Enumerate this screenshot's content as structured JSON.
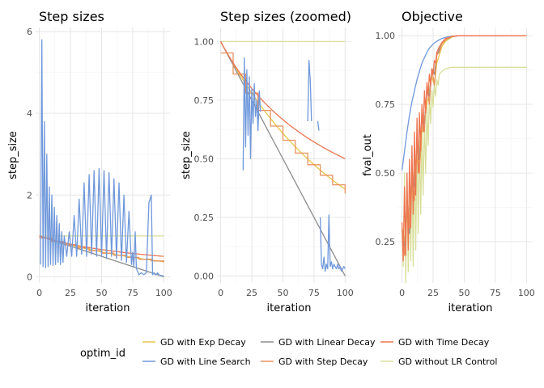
{
  "colors": {
    "GD with Exp Decay": "#e8c64a",
    "GD with Line Search": "#6f98db",
    "GD with Linear Decay": "#8c8c8c",
    "GD with Step Decay": "#e8925f",
    "GD with Time Decay": "#ee7650",
    "GD without LR Control": "#d9df9a"
  },
  "legend": {
    "title": "optim_id",
    "entries": [
      "GD with Exp Decay",
      "GD with Line Search",
      "GD with Linear Decay",
      "GD with Step Decay",
      "GD with Time Decay",
      "GD without LR Control"
    ]
  },
  "chart_data": [
    {
      "type": "line",
      "title": "Step sizes",
      "xlabel": "iteration",
      "ylabel": "step_size",
      "xlim": [
        -3,
        105
      ],
      "ylim": [
        -0.15,
        6.1
      ],
      "xticks": [
        "0",
        "25",
        "50",
        "75",
        "100"
      ],
      "yticks": [
        "0",
        "2",
        "4",
        "6"
      ],
      "grid": true,
      "series": [
        {
          "name": "GD without LR Control",
          "kind": "const",
          "value": 1.0
        },
        {
          "name": "GD with Exp Decay",
          "kind": "exp",
          "start": 1.0,
          "end": 0.37
        },
        {
          "name": "GD with Linear Decay",
          "kind": "linear",
          "start": 1.0,
          "end": 0.0
        },
        {
          "name": "GD with Step Decay",
          "kind": "step",
          "start": 1.0,
          "end": 0.37
        },
        {
          "name": "GD with Time Decay",
          "kind": "time",
          "start": 1.0,
          "end": 0.5
        },
        {
          "name": "GD with Line Search",
          "kind": "points",
          "x": [
            1,
            2,
            3,
            4,
            5,
            6,
            7,
            8,
            9,
            10,
            11,
            12,
            13,
            14,
            15,
            16,
            17,
            18,
            19,
            20,
            22,
            24,
            26,
            28,
            30,
            32,
            34,
            36,
            38,
            40,
            42,
            44,
            46,
            48,
            50,
            52,
            54,
            56,
            58,
            60,
            62,
            64,
            66,
            68,
            70,
            72,
            74,
            75,
            76,
            77,
            78,
            80,
            82,
            84,
            86,
            88,
            90,
            91,
            92,
            93,
            94,
            95,
            96,
            98,
            100
          ],
          "y": [
            0.3,
            5.8,
            0.25,
            3.8,
            0.22,
            3.0,
            0.25,
            2.2,
            0.3,
            2.0,
            0.28,
            1.7,
            0.3,
            1.5,
            0.35,
            1.3,
            0.3,
            1.1,
            0.35,
            1.0,
            0.5,
            1.1,
            0.5,
            1.5,
            0.5,
            1.9,
            0.55,
            2.3,
            0.5,
            2.5,
            0.55,
            2.6,
            0.5,
            2.65,
            0.5,
            2.6,
            0.45,
            2.55,
            0.5,
            2.4,
            0.45,
            2.3,
            0.4,
            2.0,
            0.35,
            1.6,
            0.3,
            0.6,
            0.25,
            1.1,
            0.2,
            0.05,
            0.1,
            0.05,
            0.1,
            1.8,
            2.0,
            0.05,
            0.1,
            0.05,
            0.05,
            0.1,
            0.05,
            0.03,
            0.02
          ]
        }
      ]
    },
    {
      "type": "line",
      "title": "Step sizes (zoomed)",
      "xlabel": "iteration",
      "ylabel": "step_size",
      "xlim": [
        -3,
        105
      ],
      "ylim": [
        -0.03,
        1.06
      ],
      "xticks": [
        "0",
        "25",
        "50",
        "75",
        "100"
      ],
      "yticks": [
        "0.00",
        "0.25",
        "0.50",
        "0.75",
        "1.00"
      ],
      "grid": true,
      "series": [
        {
          "name": "GD without LR Control",
          "kind": "const",
          "value": 1.0
        },
        {
          "name": "GD with Exp Decay",
          "kind": "exp",
          "start": 1.0,
          "end": 0.37
        },
        {
          "name": "GD with Linear Decay",
          "kind": "linear",
          "start": 1.0,
          "end": 0.0
        },
        {
          "name": "GD with Step Decay",
          "kind": "step",
          "start": 1.0,
          "end": 0.37
        },
        {
          "name": "GD with Time Decay",
          "kind": "time",
          "start": 1.0,
          "end": 0.5
        },
        {
          "name": "GD with Line Search",
          "kind": "points",
          "x": [
            18,
            19,
            20,
            21,
            22,
            23,
            24,
            25,
            26,
            27,
            28,
            29,
            30,
            31,
            32
          ],
          "y": [
            0.45,
            0.93,
            0.55,
            0.88,
            0.6,
            0.85,
            0.5,
            0.8,
            0.65,
            0.82,
            0.68,
            0.75,
            0.62,
            0.79,
            0.7
          ]
        },
        {
          "name": "GD with Line Search",
          "kind": "points",
          "x": [
            70,
            71,
            72,
            73
          ],
          "y": [
            0.66,
            0.92,
            0.83,
            0.66
          ]
        },
        {
          "name": "GD with Line Search",
          "kind": "points",
          "x": [
            78,
            79
          ],
          "y": [
            0.66,
            0.62
          ]
        },
        {
          "name": "GD with Line Search",
          "kind": "points",
          "x": [
            80,
            81,
            82,
            83,
            84,
            85,
            86,
            87,
            88,
            89,
            90,
            91,
            92,
            93,
            94,
            95,
            96,
            97,
            98,
            99,
            100
          ],
          "y": [
            0.25,
            0.05,
            0.03,
            0.08,
            0.02,
            0.05,
            0.03,
            0.26,
            0.04,
            0.06,
            0.03,
            0.05,
            0.04,
            0.03,
            0.05,
            0.03,
            0.04,
            0.02,
            0.03,
            0.04,
            0.03
          ]
        }
      ]
    },
    {
      "type": "line",
      "title": "Objective",
      "xlabel": "iteration",
      "ylabel": "fval_out",
      "xlim": [
        -3,
        105
      ],
      "ylim": [
        0.1,
        1.03
      ],
      "xticks": [
        "0",
        "25",
        "50",
        "75",
        "100"
      ],
      "yticks": [
        "0.25",
        "0.50",
        "0.75",
        "1.00"
      ],
      "grid": true,
      "series": [
        {
          "name": "GD with Line Search",
          "kind": "points",
          "x": [
            0,
            2,
            4,
            6,
            8,
            10,
            12,
            14,
            16,
            18,
            20,
            22,
            25,
            28,
            31,
            34,
            37,
            40,
            45,
            50,
            60,
            100
          ],
          "y": [
            0.51,
            0.58,
            0.65,
            0.71,
            0.76,
            0.8,
            0.84,
            0.87,
            0.9,
            0.92,
            0.94,
            0.955,
            0.97,
            0.98,
            0.988,
            0.993,
            0.996,
            0.998,
            1.0,
            1.0,
            1.0,
            1.0
          ]
        },
        {
          "name": "GD without LR Control",
          "kind": "points",
          "x": [
            0,
            1,
            2,
            3,
            4,
            5,
            6,
            7,
            8,
            9,
            10,
            11,
            12,
            13,
            14,
            15,
            16,
            17,
            18,
            19,
            20,
            21,
            22,
            23,
            24,
            25,
            26,
            27,
            28,
            29,
            30,
            32,
            35,
            40,
            50,
            100
          ],
          "y": [
            0.3,
            0.16,
            0.5,
            0.08,
            0.48,
            0.14,
            0.45,
            0.18,
            0.55,
            0.16,
            0.58,
            0.22,
            0.6,
            0.28,
            0.62,
            0.35,
            0.64,
            0.42,
            0.7,
            0.5,
            0.74,
            0.6,
            0.78,
            0.68,
            0.8,
            0.74,
            0.82,
            0.78,
            0.84,
            0.82,
            0.86,
            0.87,
            0.88,
            0.885,
            0.885,
            0.885
          ]
        },
        {
          "name": "GD with Exp Decay",
          "kind": "points",
          "x": [
            0,
            2,
            4,
            6,
            8,
            10,
            12,
            14,
            16,
            18,
            20,
            22,
            24,
            26,
            28,
            30,
            32,
            35,
            40,
            45,
            50,
            100
          ],
          "y": [
            0.3,
            0.25,
            0.35,
            0.3,
            0.45,
            0.5,
            0.55,
            0.5,
            0.65,
            0.7,
            0.75,
            0.8,
            0.85,
            0.82,
            0.9,
            0.93,
            0.96,
            0.98,
            0.995,
            1.0,
            1.0,
            1.0
          ]
        },
        {
          "name": "GD with Linear Decay",
          "kind": "points",
          "x": [
            0,
            2,
            4,
            6,
            8,
            10,
            12,
            14,
            16,
            18,
            20,
            22,
            24,
            26,
            28,
            30,
            32,
            35,
            40,
            45,
            50,
            100
          ],
          "y": [
            0.3,
            0.22,
            0.4,
            0.28,
            0.5,
            0.45,
            0.6,
            0.55,
            0.7,
            0.68,
            0.8,
            0.78,
            0.88,
            0.86,
            0.93,
            0.95,
            0.97,
            0.985,
            0.997,
            1.0,
            1.0,
            1.0
          ]
        },
        {
          "name": "GD with Step Decay",
          "kind": "points",
          "x": [
            0,
            2,
            4,
            6,
            8,
            10,
            12,
            14,
            16,
            18,
            20,
            22,
            24,
            26,
            28,
            30,
            32,
            35,
            40,
            45,
            50,
            100
          ],
          "y": [
            0.3,
            0.2,
            0.38,
            0.3,
            0.52,
            0.4,
            0.62,
            0.5,
            0.72,
            0.65,
            0.82,
            0.75,
            0.88,
            0.82,
            0.93,
            0.94,
            0.97,
            0.985,
            0.997,
            1.0,
            1.0,
            1.0
          ]
        },
        {
          "name": "GD with Time Decay",
          "kind": "points",
          "x": [
            0,
            1,
            2,
            3,
            4,
            5,
            6,
            7,
            8,
            9,
            10,
            11,
            12,
            13,
            14,
            15,
            16,
            17,
            18,
            19,
            20,
            21,
            22,
            23,
            24,
            25,
            26,
            27,
            28,
            30,
            32,
            35,
            40,
            45,
            50,
            100
          ],
          "y": [
            0.32,
            0.18,
            0.45,
            0.2,
            0.5,
            0.22,
            0.55,
            0.3,
            0.6,
            0.35,
            0.65,
            0.42,
            0.7,
            0.5,
            0.72,
            0.58,
            0.75,
            0.65,
            0.8,
            0.72,
            0.83,
            0.78,
            0.86,
            0.82,
            0.88,
            0.86,
            0.91,
            0.9,
            0.94,
            0.96,
            0.975,
            0.99,
            0.997,
            1.0,
            1.0,
            1.0
          ]
        }
      ]
    }
  ]
}
